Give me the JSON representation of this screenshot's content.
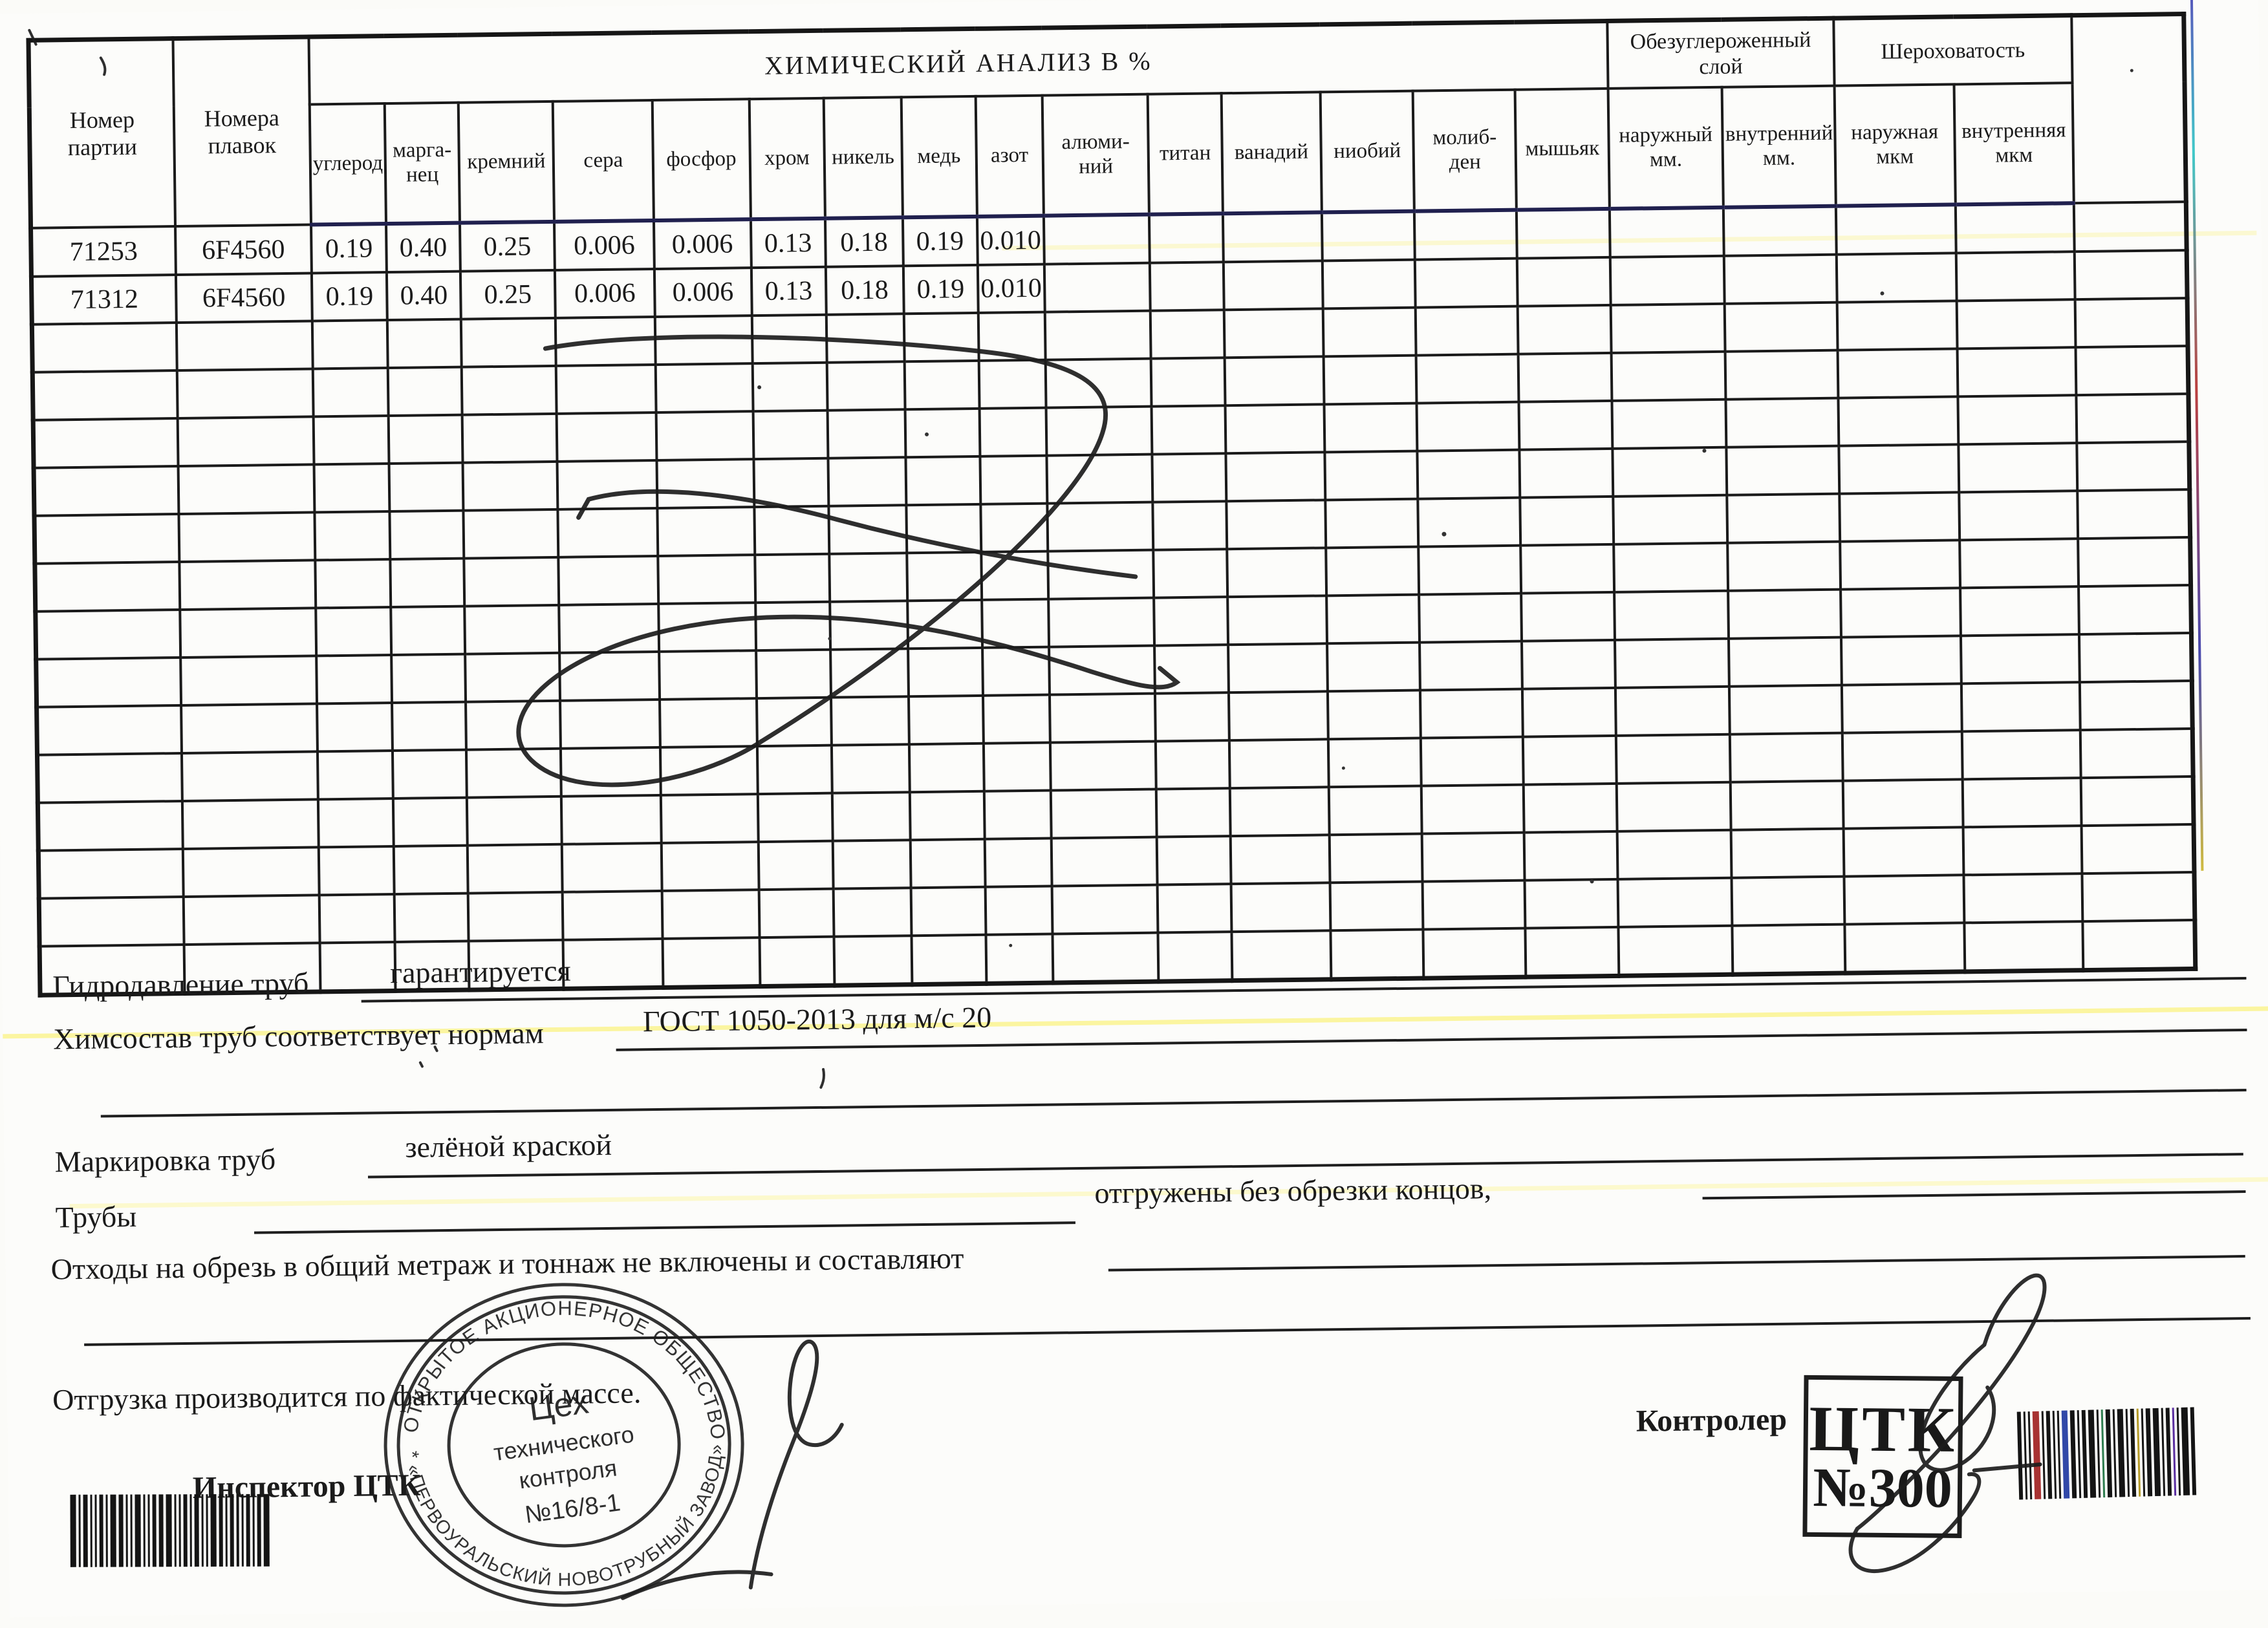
{
  "document": {
    "table": {
      "col_batch": "Номер\nпартии",
      "col_heats": "Номера\nплавок",
      "chem_title": "ХИМИЧЕСКИЙ АНАЛИЗ В %",
      "elements": [
        "углерод",
        "марга-\nнец",
        "кремний",
        "сера",
        "фосфор",
        "хром",
        "никель",
        "медь",
        "азот",
        "алюми-\nний",
        "титан",
        "ванадий",
        "ниобий",
        "молиб-\nден",
        "мышьяк"
      ],
      "decarb_title": "Обезуглероженный\nслой",
      "decarb_cols": [
        "наружный\nмм.",
        "внутренний\nмм."
      ],
      "rough_title": "Шероховатость",
      "rough_cols": [
        "наружная\nмкм",
        "внутренняя\nмкм"
      ],
      "rows": [
        {
          "batch": "71253",
          "heat": "6F4560",
          "values": [
            "0.19",
            "0.40",
            "0.25",
            "0.006",
            "0.006",
            "0.13",
            "0.18",
            "0.19",
            "0.010"
          ]
        },
        {
          "batch": "71312",
          "heat": "6F4560",
          "values": [
            "0.19",
            "0.40",
            "0.25",
            "0.006",
            "0.006",
            "0.13",
            "0.18",
            "0.19",
            "0.010"
          ]
        }
      ],
      "empty_rows": 14
    },
    "fields": {
      "hydro": {
        "label": "Гидродавление труб",
        "value": "гарантируется"
      },
      "chem": {
        "label": "Химсостав труб соответствует нормам",
        "value": "ГОСТ 1050-2013 для м/с 20"
      },
      "marking": {
        "label": "Маркировка труб",
        "value": "зелёной краской"
      },
      "pipes": {
        "label": "Трубы",
        "note": "отгружены без обрезки концов,"
      },
      "waste": {
        "label": "Отходы на обрезь в общий метраж и тоннаж не включены и составляют"
      },
      "shipment": {
        "label": "Отгрузка производится по фактической массе."
      }
    },
    "inspector_label": "Инспектор ЦТК",
    "controller_label": "Контролер",
    "round_stamp": {
      "ring_top": "ОТКРЫТОЕ АКЦИОНЕРНОЕ ОБЩЕСТВО",
      "ring_bottom": "* «ПЕРВОУРАЛЬСКИЙ НОВОТРУБНЫЙ ЗАВОД» *",
      "line1": "Цех",
      "line2": "технического",
      "line3": "контроля",
      "line4": "№16/8-1"
    },
    "rect_stamp": {
      "line1": "ЦТК",
      "line2": "№300"
    },
    "icons": {
      "left_barcode": "barcode-icon",
      "right_barcode": "barcode-icon"
    }
  }
}
